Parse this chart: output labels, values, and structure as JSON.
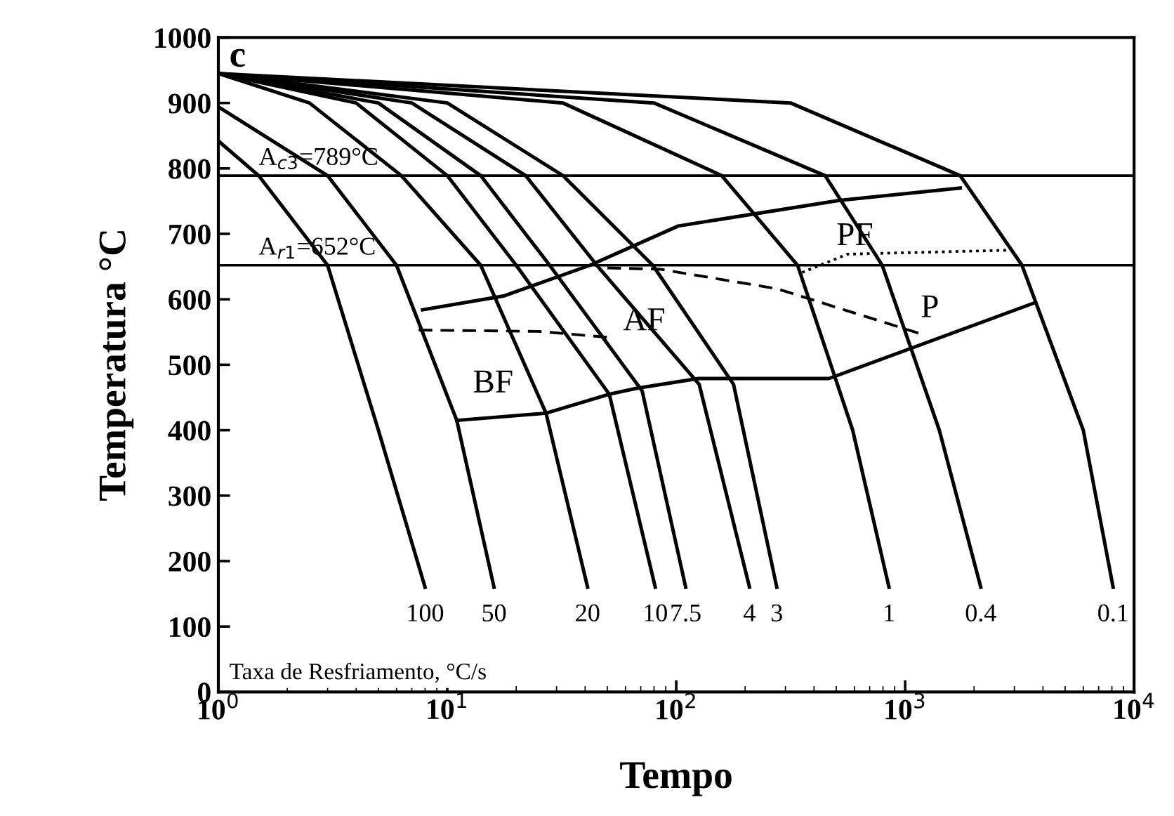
{
  "chart_data": {
    "type": "line",
    "xlabel": "Tempo",
    "ylabel": "Temperatura °C",
    "log": "x",
    "xlim": [
      1,
      10000
    ],
    "ylim": [
      0,
      1000
    ],
    "xticks": [
      {
        "value": 1,
        "label": "10$^{0}$"
      },
      {
        "value": 10,
        "label": "10$^{1}$"
      },
      {
        "value": 100,
        "label": "10$^{2}$"
      },
      {
        "value": 1000,
        "label": "10$^{3}$"
      },
      {
        "value": 10000,
        "label": "10$^{4}$"
      }
    ],
    "yticks": [
      0,
      100,
      200,
      300,
      400,
      500,
      600,
      700,
      800,
      900,
      1000
    ],
    "grid": false,
    "legend": false,
    "marker": "none",
    "ref_lines": [
      {
        "axis": "y",
        "value": 789,
        "label": "A$_{c3}$=789°C",
        "color": "#000000"
      },
      {
        "axis": "y",
        "value": 652,
        "label": "A$_{r1}$=652°C",
        "color": "#000000"
      }
    ],
    "series": [
      {
        "name": "100",
        "color": "#000000",
        "line_style": "solid",
        "x": [
          1,
          1.5,
          3,
          5,
          8
        ],
        "values": [
          842,
          789,
          652,
          400,
          160
        ]
      },
      {
        "name": "50",
        "color": "#000000",
        "line_style": "solid",
        "x": [
          1,
          3,
          6,
          11,
          16
        ],
        "values": [
          894,
          789,
          652,
          415,
          160
        ]
      },
      {
        "name": "20",
        "color": "#000000",
        "line_style": "solid",
        "x": [
          1,
          2.5,
          6.3,
          14,
          27,
          41
        ],
        "values": [
          945,
          900,
          789,
          652,
          426,
          160
        ]
      },
      {
        "name": "10",
        "color": "#000000",
        "line_style": "solid",
        "x": [
          1,
          4,
          10,
          20,
          51,
          81
        ],
        "values": [
          945,
          900,
          789,
          652,
          455,
          160
        ]
      },
      {
        "name": "7.5",
        "color": "#000000",
        "line_style": "solid",
        "x": [
          1,
          5,
          14,
          28,
          71,
          110
        ],
        "values": [
          945,
          900,
          789,
          652,
          460,
          160
        ]
      },
      {
        "name": "4",
        "color": "#000000",
        "line_style": "solid",
        "x": [
          1,
          7,
          22,
          45,
          126,
          209
        ],
        "values": [
          945,
          900,
          789,
          652,
          470,
          160
        ]
      },
      {
        "name": "3",
        "color": "#000000",
        "line_style": "solid",
        "x": [
          1,
          10,
          32,
          79,
          178,
          275
        ],
        "values": [
          945,
          900,
          789,
          652,
          470,
          160
        ]
      },
      {
        "name": "1",
        "color": "#000000",
        "line_style": "solid",
        "x": [
          1,
          32,
          158,
          339,
          590,
          850
        ],
        "values": [
          945,
          900,
          789,
          652,
          400,
          160
        ]
      },
      {
        "name": "0.4",
        "color": "#000000",
        "line_style": "solid",
        "x": [
          1,
          80,
          447,
          794,
          1410,
          2140
        ],
        "values": [
          945,
          900,
          789,
          652,
          400,
          160
        ]
      },
      {
        "name": "0.1",
        "color": "#000000",
        "line_style": "solid",
        "x": [
          1,
          316,
          1740,
          3240,
          6000,
          8100
        ],
        "values": [
          945,
          900,
          789,
          652,
          400,
          160
        ]
      },
      {
        "color": "#000000",
        "line_style": "solid",
        "x": [
          7.8,
          17.6,
          42,
          102,
          513,
          1740
        ],
        "values": [
          584,
          605,
          652,
          712,
          751,
          770
        ]
      },
      {
        "color": "#000000",
        "line_style": "solid",
        "x": [
          11,
          27,
          51,
          67,
          125,
          465,
          3700
        ],
        "values": [
          415,
          426,
          455,
          464,
          479,
          479,
          595
        ]
      },
      {
        "color": "#000000",
        "line_style": "dashed",
        "x": [
          7.5,
          25,
          50
        ],
        "values": [
          553,
          551,
          542
        ]
      },
      {
        "color": "#000000",
        "line_style": "dashed",
        "x": [
          50,
          85,
          277,
          1200
        ],
        "values": [
          648,
          646,
          616,
          546
        ]
      },
      {
        "color": "#000000",
        "line_style": "dotted",
        "x": [
          355,
          560,
          2800
        ],
        "values": [
          641,
          669,
          675
        ]
      }
    ],
    "annotations": [
      "c",
      "Taxa de Resfriamento, °C/s",
      "BF",
      "AF",
      "PF",
      "P"
    ]
  }
}
